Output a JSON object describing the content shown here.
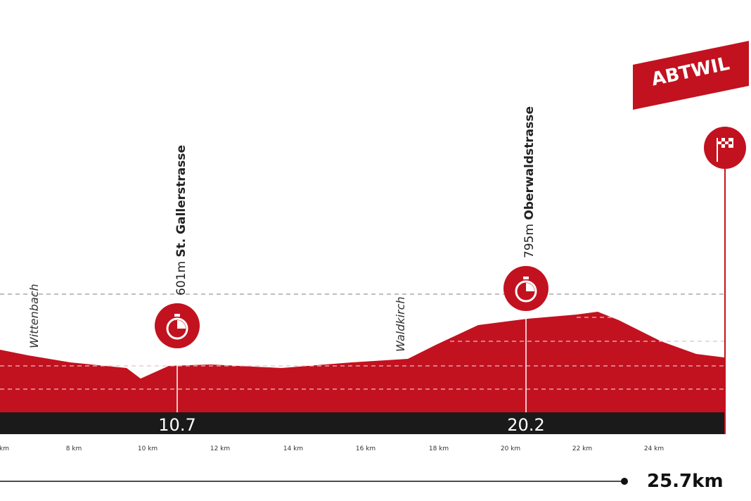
{
  "towns": [
    "Wittenbach",
    "Waldkirch"
  ],
  "sprints": [
    {
      "altitude": "601m",
      "name": "St. Gallerstrasse",
      "km": "10.7"
    },
    {
      "altitude": "795m",
      "name": "Oberwaldstrasse",
      "km": "20.2"
    }
  ],
  "finish": "ABTWIL",
  "axis": [
    "km",
    "8 km",
    "10 km",
    "12 km",
    "14 km",
    "16 km",
    "18 km",
    "20 km",
    "22 km",
    "24 km"
  ],
  "distance": "25.7km"
}
